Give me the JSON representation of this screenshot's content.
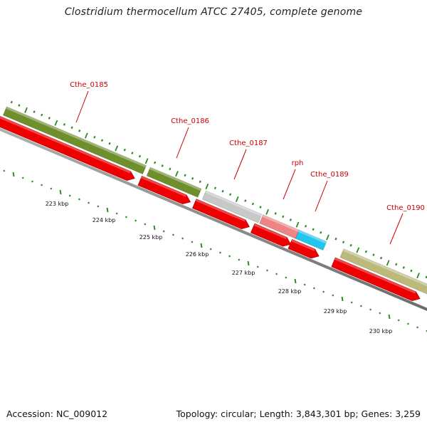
{
  "title": "Clostridium thermocellum ATCC 27405, complete genome",
  "footer": {
    "accession": "Accession: NC_009012",
    "summary": "Topology: circular; Length: 3,843,301 bp; Genes: 3,259"
  },
  "colors": {
    "backbone": "#8c8c8c",
    "cds_arrow": "#ee0000",
    "ticks": "#2e8b22",
    "label": "#cc0000",
    "gene_olive": "#6f8f2c",
    "gene_gray": "#c8c8c8",
    "gene_pink": "#ee8484",
    "gene_cyan": "#22c4f0",
    "gene_khaki": "#bcb97a"
  },
  "genes": [
    {
      "name": "Cthe_0185",
      "color_key": "gene_olive"
    },
    {
      "name": "Cthe_0186",
      "color_key": "gene_olive"
    },
    {
      "name": "Cthe_0187",
      "color_key": "gene_gray"
    },
    {
      "name": "rph",
      "color_key": "gene_pink"
    },
    {
      "name": "Cthe_0189",
      "color_key": "gene_cyan"
    },
    {
      "name": "Cthe_0190",
      "color_key": "gene_khaki"
    }
  ],
  "kbp_labels": [
    "223 kbp",
    "224 kbp",
    "225 kbp",
    "226 kbp",
    "227 kbp",
    "228 kbp",
    "229 kbp",
    "230 kbp"
  ]
}
